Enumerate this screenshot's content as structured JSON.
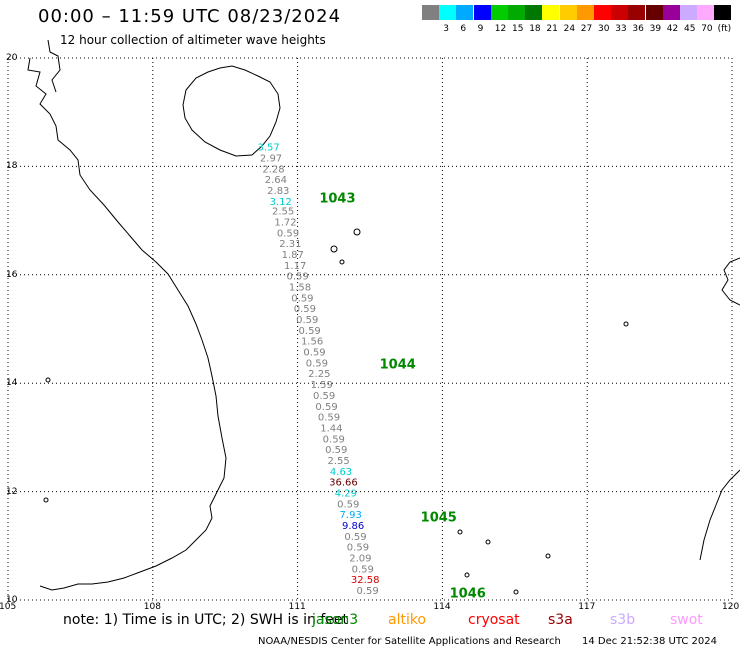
{
  "title": "00:00 – 11:59 UTC 08/23/2024",
  "subtitle": "12 hour collection of altimeter wave heights",
  "scale": {
    "unit": "(ft)",
    "bins": [
      {
        "label": "",
        "color": "#808080"
      },
      {
        "label": "3",
        "color": "#00ffff"
      },
      {
        "label": "6",
        "color": "#00aaff"
      },
      {
        "label": "9",
        "color": "#0000ff"
      },
      {
        "label": "12",
        "color": "#00cc00"
      },
      {
        "label": "15",
        "color": "#00aa00"
      },
      {
        "label": "18",
        "color": "#007700"
      },
      {
        "label": "21",
        "color": "#ffff00"
      },
      {
        "label": "24",
        "color": "#ffcc00"
      },
      {
        "label": "27",
        "color": "#ff9900"
      },
      {
        "label": "30",
        "color": "#ff0000"
      },
      {
        "label": "33",
        "color": "#cc0000"
      },
      {
        "label": "36",
        "color": "#990000"
      },
      {
        "label": "39",
        "color": "#660000"
      },
      {
        "label": "42",
        "color": "#990099"
      },
      {
        "label": "45",
        "color": "#ccaaff"
      },
      {
        "label": "70",
        "color": "#ffaaff"
      },
      {
        "label": "",
        "color": "#000000"
      }
    ]
  },
  "axes": {
    "lat_ticks": [
      "20",
      "18",
      "16",
      "14",
      "12",
      "10"
    ],
    "lon_ticks": [
      "105",
      "108",
      "111",
      "114",
      "117",
      "120"
    ],
    "lat_range": [
      10,
      20
    ],
    "lon_range": [
      105,
      120
    ]
  },
  "observations": [
    {
      "lon": 110.4,
      "lat": 18.29,
      "value": "3.57",
      "color": "#00cccc"
    },
    {
      "lon": 110.45,
      "lat": 18.09,
      "value": "2.97",
      "color": "#808080"
    },
    {
      "lon": 110.5,
      "lat": 17.89,
      "value": "2.28",
      "color": "#808080"
    },
    {
      "lon": 110.55,
      "lat": 17.69,
      "value": "2.64",
      "color": "#808080"
    },
    {
      "lon": 110.6,
      "lat": 17.49,
      "value": "2.83",
      "color": "#808080"
    },
    {
      "lon": 110.65,
      "lat": 17.29,
      "value": "3.12",
      "color": "#00cccc"
    },
    {
      "lon": 110.7,
      "lat": 17.11,
      "value": "2.55",
      "color": "#808080"
    },
    {
      "lon": 110.75,
      "lat": 16.91,
      "value": "1.72",
      "color": "#808080"
    },
    {
      "lon": 110.8,
      "lat": 16.71,
      "value": "0.59",
      "color": "#808080"
    },
    {
      "lon": 110.85,
      "lat": 16.51,
      "value": "2.31",
      "color": "#808080"
    },
    {
      "lon": 110.9,
      "lat": 16.31,
      "value": "1.87",
      "color": "#808080"
    },
    {
      "lon": 110.95,
      "lat": 16.11,
      "value": "1.17",
      "color": "#808080"
    },
    {
      "lon": 111.0,
      "lat": 15.91,
      "value": "0.59",
      "color": "#808080"
    },
    {
      "lon": 111.05,
      "lat": 15.71,
      "value": "1.58",
      "color": "#808080"
    },
    {
      "lon": 111.1,
      "lat": 15.51,
      "value": "0.59",
      "color": "#808080"
    },
    {
      "lon": 111.15,
      "lat": 15.31,
      "value": "0.59",
      "color": "#808080"
    },
    {
      "lon": 111.2,
      "lat": 15.11,
      "value": "0.59",
      "color": "#808080"
    },
    {
      "lon": 111.25,
      "lat": 14.91,
      "value": "0.59",
      "color": "#808080"
    },
    {
      "lon": 111.3,
      "lat": 14.71,
      "value": "1.56",
      "color": "#808080"
    },
    {
      "lon": 111.35,
      "lat": 14.51,
      "value": "0.59",
      "color": "#808080"
    },
    {
      "lon": 111.4,
      "lat": 14.31,
      "value": "0.59",
      "color": "#808080"
    },
    {
      "lon": 111.45,
      "lat": 14.11,
      "value": "2.25",
      "color": "#808080"
    },
    {
      "lon": 111.5,
      "lat": 13.91,
      "value": "1.59",
      "color": "#808080"
    },
    {
      "lon": 111.55,
      "lat": 13.71,
      "value": "0.59",
      "color": "#808080"
    },
    {
      "lon": 111.6,
      "lat": 13.51,
      "value": "0.59",
      "color": "#808080"
    },
    {
      "lon": 111.65,
      "lat": 13.31,
      "value": "0.59",
      "color": "#808080"
    },
    {
      "lon": 111.7,
      "lat": 13.11,
      "value": "1.44",
      "color": "#808080"
    },
    {
      "lon": 111.75,
      "lat": 12.91,
      "value": "0.59",
      "color": "#808080"
    },
    {
      "lon": 111.8,
      "lat": 12.71,
      "value": "0.59",
      "color": "#808080"
    },
    {
      "lon": 111.85,
      "lat": 12.51,
      "value": "2.55",
      "color": "#808080"
    },
    {
      "lon": 111.9,
      "lat": 12.31,
      "value": "4.63",
      "color": "#00cccc"
    },
    {
      "lon": 111.95,
      "lat": 12.11,
      "value": "36.66",
      "color": "#660000"
    },
    {
      "lon": 112.0,
      "lat": 11.91,
      "value": "4.29",
      "color": "#00cccc"
    },
    {
      "lon": 112.05,
      "lat": 11.71,
      "value": "0.59",
      "color": "#808080"
    },
    {
      "lon": 112.1,
      "lat": 11.51,
      "value": "7.93",
      "color": "#00aaff"
    },
    {
      "lon": 112.15,
      "lat": 11.31,
      "value": "9.86",
      "color": "#0000cc"
    },
    {
      "lon": 112.2,
      "lat": 11.11,
      "value": "0.59",
      "color": "#808080"
    },
    {
      "lon": 112.25,
      "lat": 10.91,
      "value": "0.59",
      "color": "#808080"
    },
    {
      "lon": 112.3,
      "lat": 10.71,
      "value": "2.09",
      "color": "#808080"
    },
    {
      "lon": 112.35,
      "lat": 10.51,
      "value": "0.59",
      "color": "#808080"
    },
    {
      "lon": 112.4,
      "lat": 10.31,
      "value": "32.58",
      "color": "#dd0000"
    },
    {
      "lon": 112.45,
      "lat": 10.11,
      "value": "0.59",
      "color": "#808080"
    }
  ],
  "pass_labels": [
    {
      "lon": 111.45,
      "lat": 17.33,
      "text": "1043",
      "color": "#008800"
    },
    {
      "lon": 112.7,
      "lat": 14.27,
      "text": "1044",
      "color": "#008800"
    },
    {
      "lon": 113.55,
      "lat": 11.45,
      "text": "1045",
      "color": "#008800"
    },
    {
      "lon": 114.15,
      "lat": 10.05,
      "text": "1046",
      "color": "#008800"
    }
  ],
  "note": "note: 1) Time is in UTC; 2) SWH is in feet",
  "satellites": [
    {
      "name": "jason3",
      "color": "#008800"
    },
    {
      "name": "altiko",
      "color": "#ff9900"
    },
    {
      "name": "cryosat",
      "color": "#ff0000"
    },
    {
      "name": "s3a",
      "color": "#990000"
    },
    {
      "name": "s3b",
      "color": "#ccaaff"
    },
    {
      "name": "swot",
      "color": "#ff99ff"
    }
  ],
  "credit": "NOAA/NESDIS Center for Satellite Applications and Research",
  "timestamp": "14 Dec 21:52:38 UTC 2024"
}
